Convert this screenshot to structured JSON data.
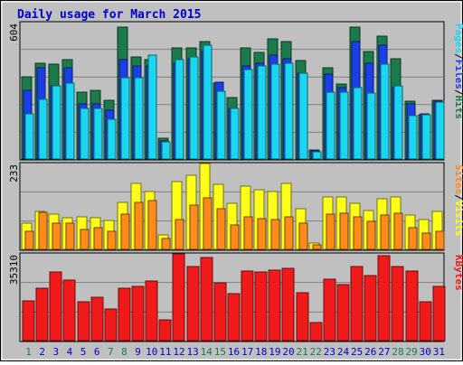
{
  "title": "Daily usage for March 2015",
  "colors": {
    "background": "#c0c0c0",
    "title": "#0000cc",
    "hits": "#1a7a4a",
    "files": "#1a3fe6",
    "pages": "#1ad6f0",
    "visits": "#ffff1a",
    "sites": "#ff8c1a",
    "kbytes": "#f01a1a",
    "weekend": "#1a7a4a",
    "weekday": "#0000cc"
  },
  "chart_data": [
    {
      "type": "bar",
      "panel": "hits-files-pages",
      "categories": [
        "1",
        "2",
        "3",
        "4",
        "5",
        "6",
        "7",
        "8",
        "9",
        "10",
        "11",
        "12",
        "13",
        "14",
        "15",
        "16",
        "17",
        "18",
        "19",
        "20",
        "21",
        "22",
        "23",
        "24",
        "25",
        "26",
        "27",
        "28",
        "29",
        "30",
        "31"
      ],
      "weekend_days": [
        1,
        7,
        8,
        14,
        15,
        21,
        22,
        28,
        29
      ],
      "ymax_label": "604",
      "legend": [
        "Pages",
        "Files",
        "Hits"
      ],
      "legend_separator": "/",
      "ylim": [
        0,
        604
      ],
      "series": [
        {
          "name": "Hits",
          "values": [
            365,
            425,
            420,
            440,
            295,
            305,
            260,
            585,
            450,
            440,
            90,
            490,
            490,
            520,
            335,
            270,
            490,
            470,
            530,
            520,
            435,
            40,
            405,
            330,
            585,
            475,
            545,
            445,
            255,
            195,
            260
          ]
        },
        {
          "name": "Files",
          "values": [
            305,
            405,
            325,
            405,
            245,
            245,
            215,
            440,
            410,
            410,
            80,
            425,
            445,
            480,
            340,
            225,
            410,
            425,
            460,
            445,
            380,
            35,
            375,
            315,
            520,
            425,
            505,
            320,
            245,
            200,
            255
          ]
        },
        {
          "name": "Pages",
          "values": [
            200,
            265,
            325,
            335,
            225,
            225,
            175,
            360,
            360,
            460,
            75,
            440,
            450,
            505,
            300,
            225,
            395,
            410,
            420,
            425,
            380,
            30,
            295,
            295,
            315,
            290,
            420,
            325,
            190,
            195,
            250
          ]
        }
      ]
    },
    {
      "type": "bar",
      "panel": "visits-sites",
      "categories": [
        "1",
        "2",
        "3",
        "4",
        "5",
        "6",
        "7",
        "8",
        "9",
        "10",
        "11",
        "12",
        "13",
        "14",
        "15",
        "16",
        "17",
        "18",
        "19",
        "20",
        "21",
        "22",
        "23",
        "24",
        "25",
        "26",
        "27",
        "28",
        "29",
        "30",
        "31"
      ],
      "ymax_label": "233",
      "legend": [
        "Sites",
        "Visits"
      ],
      "legend_separator": "/",
      "ylim": [
        0,
        233
      ],
      "series": [
        {
          "name": "Visits",
          "values": [
            72,
            103,
            95,
            85,
            88,
            85,
            78,
            127,
            178,
            157,
            39,
            183,
            202,
            232,
            177,
            125,
            172,
            163,
            157,
            178,
            110,
            17,
            142,
            142,
            125,
            105,
            138,
            142,
            92,
            82,
            103
          ]
        },
        {
          "name": "Sites",
          "values": [
            50,
            100,
            70,
            70,
            55,
            58,
            50,
            95,
            127,
            132,
            30,
            80,
            120,
            139,
            110,
            65,
            88,
            83,
            80,
            88,
            70,
            13,
            95,
            98,
            88,
            75,
            93,
            98,
            58,
            45,
            50
          ]
        }
      ]
    },
    {
      "type": "bar",
      "panel": "kbytes",
      "categories": [
        "1",
        "2",
        "3",
        "4",
        "5",
        "6",
        "7",
        "8",
        "9",
        "10",
        "11",
        "12",
        "13",
        "14",
        "15",
        "16",
        "17",
        "18",
        "19",
        "20",
        "21",
        "22",
        "23",
        "24",
        "25",
        "26",
        "27",
        "28",
        "29",
        "30",
        "31"
      ],
      "ymax_label": "35310",
      "legend": [
        "KBytes"
      ],
      "ylim": [
        0,
        35310
      ],
      "series": [
        {
          "name": "KBytes",
          "values": [
            16000,
            21500,
            27800,
            24700,
            15800,
            17500,
            12800,
            21500,
            22000,
            24200,
            8600,
            35300,
            30000,
            33800,
            23400,
            19300,
            28200,
            28000,
            28700,
            29400,
            19400,
            7300,
            24900,
            22700,
            30100,
            26400,
            34500,
            30000,
            28300,
            15800,
            22000
          ]
        }
      ]
    }
  ]
}
